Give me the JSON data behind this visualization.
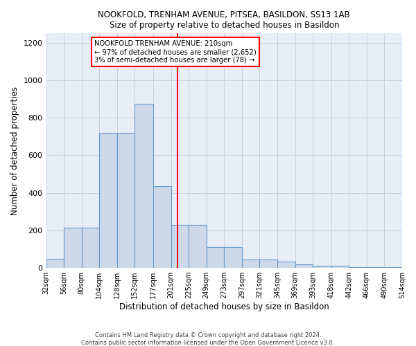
{
  "title": "NOOKFOLD, TRENHAM AVENUE, PITSEA, BASILDON, SS13 1AB",
  "subtitle": "Size of property relative to detached houses in Basildon",
  "xlabel": "Distribution of detached houses by size in Basildon",
  "ylabel": "Number of detached properties",
  "bin_edges": [
    32,
    56,
    80,
    104,
    128,
    152,
    177,
    201,
    225,
    249,
    273,
    297,
    321,
    345,
    369,
    393,
    418,
    442,
    466,
    490,
    514
  ],
  "bar_heights": [
    50,
    215,
    215,
    720,
    720,
    875,
    435,
    230,
    230,
    110,
    110,
    45,
    45,
    35,
    20,
    10,
    10,
    5,
    5,
    3
  ],
  "bar_color": "#cdd9e8",
  "bar_edge_color": "#6699cc",
  "vertical_line_x": 210,
  "vertical_line_color": "red",
  "annotation_title": "NOOKFOLD TRENHAM AVENUE: 210sqm",
  "annotation_line1": "← 97% of detached houses are smaller (2,652)",
  "annotation_line2": "3% of semi-detached houses are larger (78) →",
  "ylim": [
    0,
    1250
  ],
  "yticks": [
    0,
    200,
    400,
    600,
    800,
    1000,
    1200
  ],
  "background_color": "#e8eef8",
  "grid_color": "#c8d0e0",
  "footer": "Contains HM Land Registry data © Crown copyright and database right 2024.\nContains public sector information licensed under the Open Government Licence v3.0."
}
